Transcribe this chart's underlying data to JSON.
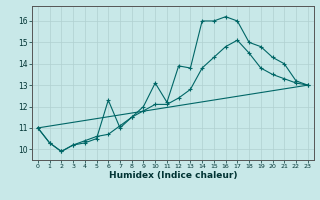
{
  "xlabel": "Humidex (Indice chaleur)",
  "background_color": "#c8e8e8",
  "grid_color": "#b0d0d0",
  "line_color": "#006666",
  "xlim": [
    -0.5,
    23.5
  ],
  "ylim": [
    9.5,
    16.7
  ],
  "yticks": [
    10,
    11,
    12,
    13,
    14,
    15,
    16
  ],
  "xticks": [
    0,
    1,
    2,
    3,
    4,
    5,
    6,
    7,
    8,
    9,
    10,
    11,
    12,
    13,
    14,
    15,
    16,
    17,
    18,
    19,
    20,
    21,
    22,
    23
  ],
  "line1_x": [
    0,
    1,
    2,
    3,
    4,
    5,
    6,
    7,
    8,
    9,
    10,
    11,
    12,
    13,
    14,
    15,
    16,
    17,
    18,
    19,
    20,
    21,
    22,
    23
  ],
  "line1_y": [
    11.0,
    10.3,
    9.9,
    10.2,
    10.3,
    10.5,
    12.3,
    11.0,
    11.5,
    12.0,
    13.1,
    12.2,
    13.9,
    13.8,
    16.0,
    16.0,
    16.2,
    16.0,
    15.0,
    14.8,
    14.3,
    14.0,
    13.2,
    13.0
  ],
  "line2_x": [
    0,
    1,
    2,
    3,
    4,
    5,
    6,
    7,
    8,
    9,
    10,
    11,
    12,
    13,
    14,
    15,
    16,
    17,
    18,
    19,
    20,
    21,
    22,
    23
  ],
  "line2_y": [
    11.0,
    10.3,
    9.9,
    10.2,
    10.4,
    10.6,
    10.7,
    11.1,
    11.5,
    11.8,
    12.1,
    12.1,
    12.4,
    12.8,
    13.8,
    14.3,
    14.8,
    15.1,
    14.5,
    13.8,
    13.5,
    13.3,
    13.1,
    13.0
  ],
  "line3_x": [
    0,
    23
  ],
  "line3_y": [
    11.0,
    13.0
  ]
}
